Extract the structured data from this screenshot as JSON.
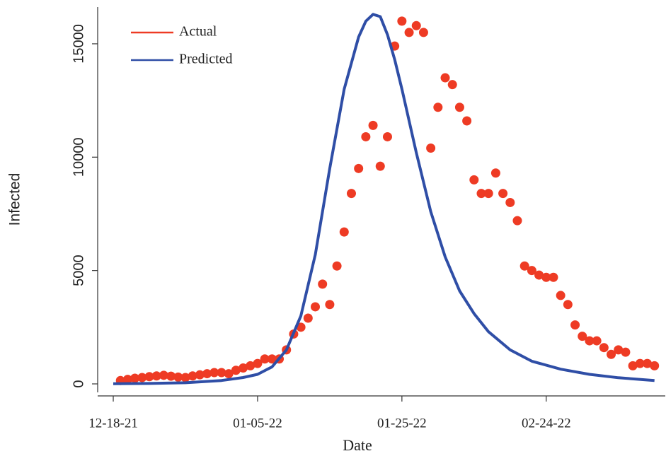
{
  "chart_data": {
    "type": "scatter-line",
    "x_label": "Date",
    "y_label": "Infected",
    "xlim": [
      -2.16,
      76.5
    ],
    "ylim": [
      -530,
      16620
    ],
    "xticks": [
      {
        "value": 0,
        "label": "12-18-21"
      },
      {
        "value": 20,
        "label": "01-05-22"
      },
      {
        "value": 40,
        "label": "01-25-22"
      },
      {
        "value": 60,
        "label": "02-24-22"
      }
    ],
    "yticks": [
      0,
      5000,
      10000,
      15000
    ],
    "legend": "top-left",
    "series": [
      {
        "name": "Actual",
        "color": "#ee3b24",
        "kind": "points",
        "x": [
          1,
          2,
          3,
          4,
          5,
          6,
          7,
          8,
          9,
          10,
          11,
          12,
          13,
          14,
          15,
          16,
          17,
          18,
          19,
          20,
          21,
          22,
          23,
          24,
          25,
          26,
          27,
          28,
          29,
          30,
          31,
          32,
          33,
          34,
          35,
          36,
          37,
          38,
          39,
          40,
          41,
          42,
          43,
          44,
          45,
          46,
          47,
          48,
          49,
          50,
          51,
          52,
          53,
          54,
          55,
          56,
          57,
          58,
          59,
          60,
          61,
          62,
          63,
          64,
          65,
          66,
          67,
          68,
          69,
          70,
          71,
          72,
          73,
          74,
          75
        ],
        "values": [
          150,
          200,
          250,
          280,
          320,
          350,
          380,
          340,
          300,
          280,
          350,
          400,
          450,
          500,
          500,
          450,
          600,
          700,
          800,
          900,
          1100,
          1100,
          1100,
          1500,
          2200,
          2500,
          2900,
          3400,
          4400,
          3500,
          5200,
          6700,
          8400,
          9500,
          10900,
          11400,
          9600,
          10900,
          14900,
          16000,
          15500,
          15800,
          15500,
          10400,
          12200,
          13500,
          13200,
          12200,
          11600,
          9000,
          8400,
          8400,
          9300,
          8400,
          8000,
          7200,
          5200,
          5000,
          4800,
          4700,
          4700,
          3900,
          3500,
          2600,
          2100,
          1900,
          1900,
          1600,
          1300,
          1500,
          1400,
          800,
          900,
          900,
          800
        ]
      },
      {
        "name": "Predicted",
        "color": "#2f4ea6",
        "kind": "line",
        "x": [
          0,
          5,
          10,
          15,
          18,
          20,
          22,
          24,
          26,
          28,
          30,
          32,
          34,
          35,
          36,
          37,
          38,
          39,
          40,
          42,
          44,
          46,
          48,
          50,
          52,
          55,
          58,
          62,
          66,
          70,
          75
        ],
        "values": [
          10,
          20,
          50,
          150,
          280,
          420,
          750,
          1500,
          3000,
          5700,
          9500,
          13000,
          15300,
          16000,
          16300,
          16200,
          15400,
          14300,
          13000,
          10200,
          7600,
          5600,
          4100,
          3100,
          2300,
          1500,
          1000,
          650,
          420,
          270,
          150
        ]
      }
    ]
  }
}
